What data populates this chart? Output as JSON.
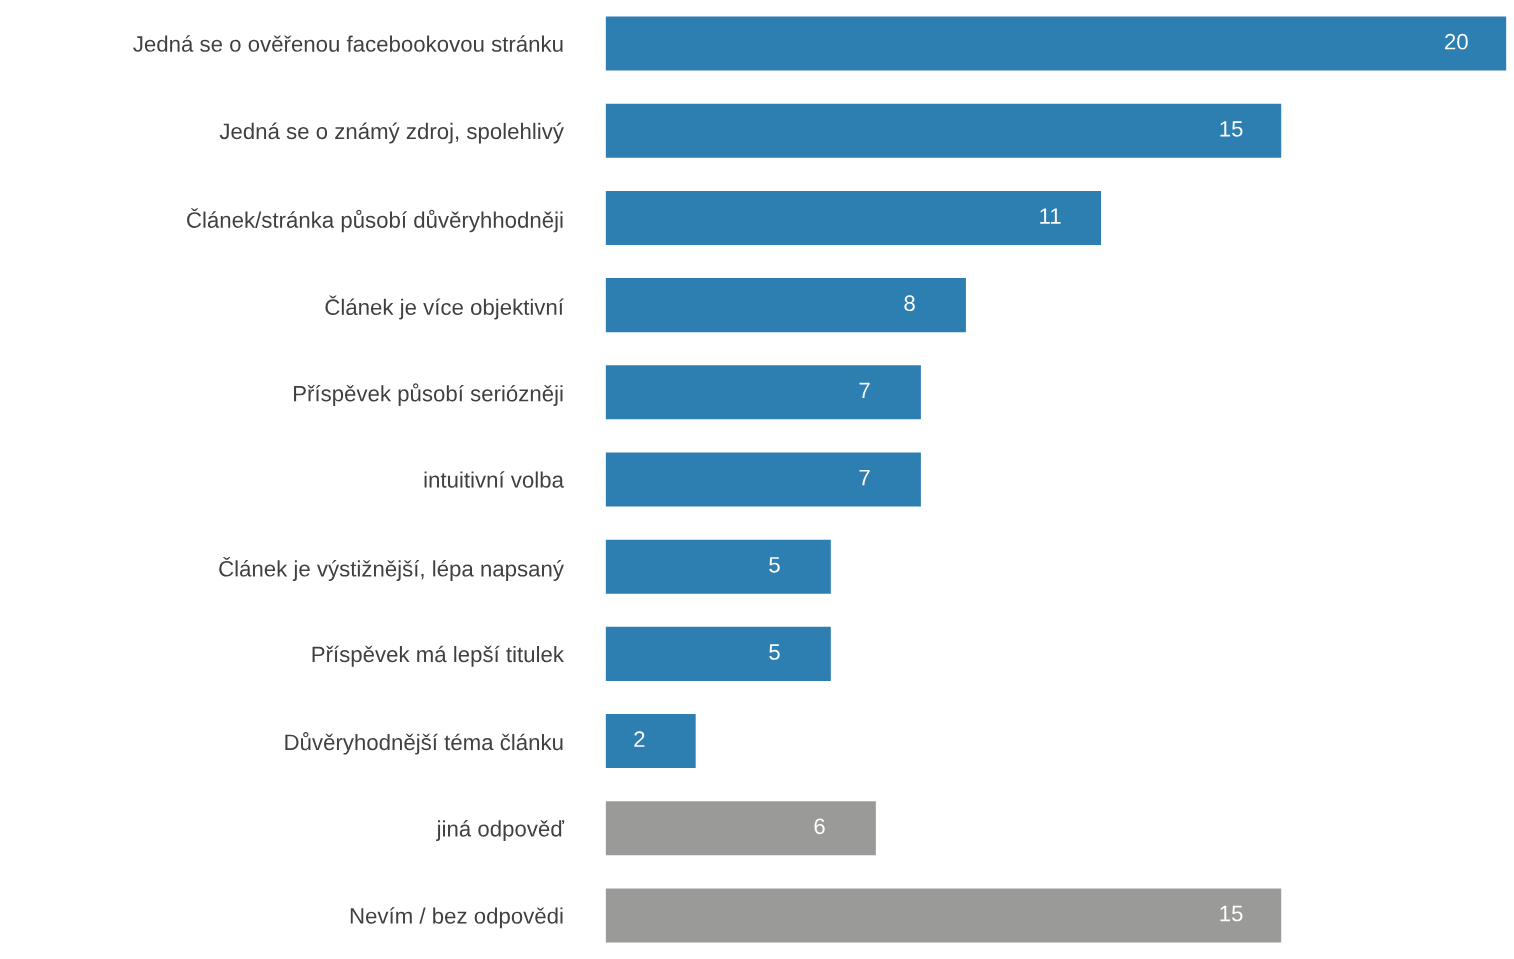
{
  "chart_data": {
    "type": "bar",
    "orientation": "horizontal",
    "categories": [
      "Jedná se o ověřenou facebookovou stránku",
      "Jedná se o známý zdroj, spolehlivý",
      "Článek/stránka působí důvěryhhodněji",
      "Článek je více objektivní",
      "Příspěvek působí seriózněji",
      "intuitivní volba",
      "Článek je výstižnější, lépa napsaný",
      "Příspěvek má lepší titulek",
      "Důvěryhodnější téma článku",
      "jiná odpověď",
      "Nevím / bez odpovědi"
    ],
    "values": [
      20,
      15,
      11,
      8,
      7,
      7,
      5,
      5,
      2,
      6,
      15
    ],
    "colors": [
      "#2e7fb1",
      "#2e7fb1",
      "#2e7fb1",
      "#2e7fb1",
      "#2e7fb1",
      "#2e7fb1",
      "#2e7fb1",
      "#2e7fb1",
      "#2e7fb1",
      "#9a9b99",
      "#9a9b99"
    ],
    "data_labels": true,
    "grid": false,
    "legend": false
  }
}
